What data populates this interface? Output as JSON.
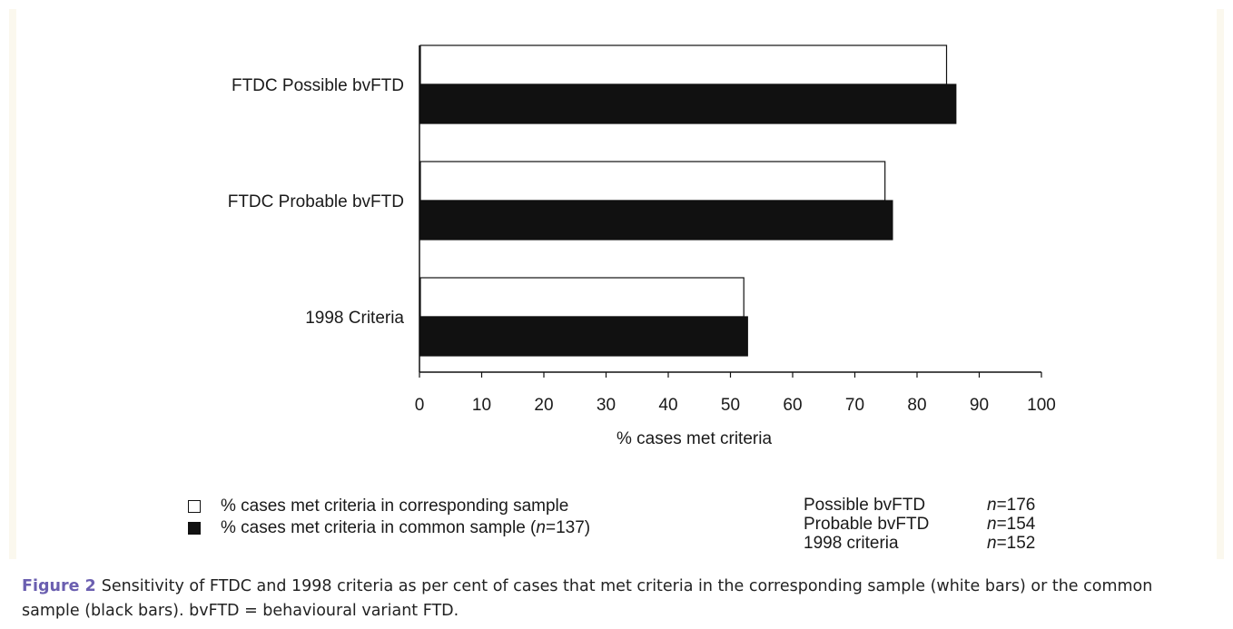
{
  "chart_data": {
    "type": "bar",
    "orientation": "horizontal",
    "categories": [
      "FTDC Possible bvFTD",
      "FTDC Probable bvFTD",
      "1998 Criteria"
    ],
    "series": [
      {
        "name": "% cases met criteria in corresponding sample",
        "color": "#ffffff",
        "values": [
          84.6,
          74.7,
          52.0
        ]
      },
      {
        "name": "% cases met criteria in common sample (n=137)",
        "color": "#111111",
        "values": [
          86.1,
          75.9,
          52.6
        ]
      }
    ],
    "xlabel": "% cases met criteria",
    "xlim": [
      0,
      100
    ],
    "xticks": [
      "0",
      "10",
      "20",
      "30",
      "40",
      "50",
      "60",
      "70",
      "80",
      "90",
      "100"
    ],
    "grid": false
  },
  "legend": {
    "items": [
      {
        "label": "% cases met criteria in corresponding sample",
        "swatch": "white"
      },
      {
        "label_prefix": "% cases met criteria in common sample (",
        "label_italic": "n",
        "label_suffix": "=137)",
        "swatch": "black"
      }
    ]
  },
  "sample_sizes": [
    {
      "name": "Possible bvFTD",
      "n_label": "n",
      "n_value": "=176"
    },
    {
      "name": "Probable bvFTD",
      "n_label": "n",
      "n_value": "=154"
    },
    {
      "name": "1998 criteria",
      "n_label": "n",
      "n_value": "=152"
    }
  ],
  "caption": {
    "label": "Figure 2",
    "text": "Sensitivity of FTDC and 1998 criteria as per cent of cases that met criteria in the corresponding sample (white bars) or the common sample (black bars). bvFTD = behavioural variant FTD."
  }
}
